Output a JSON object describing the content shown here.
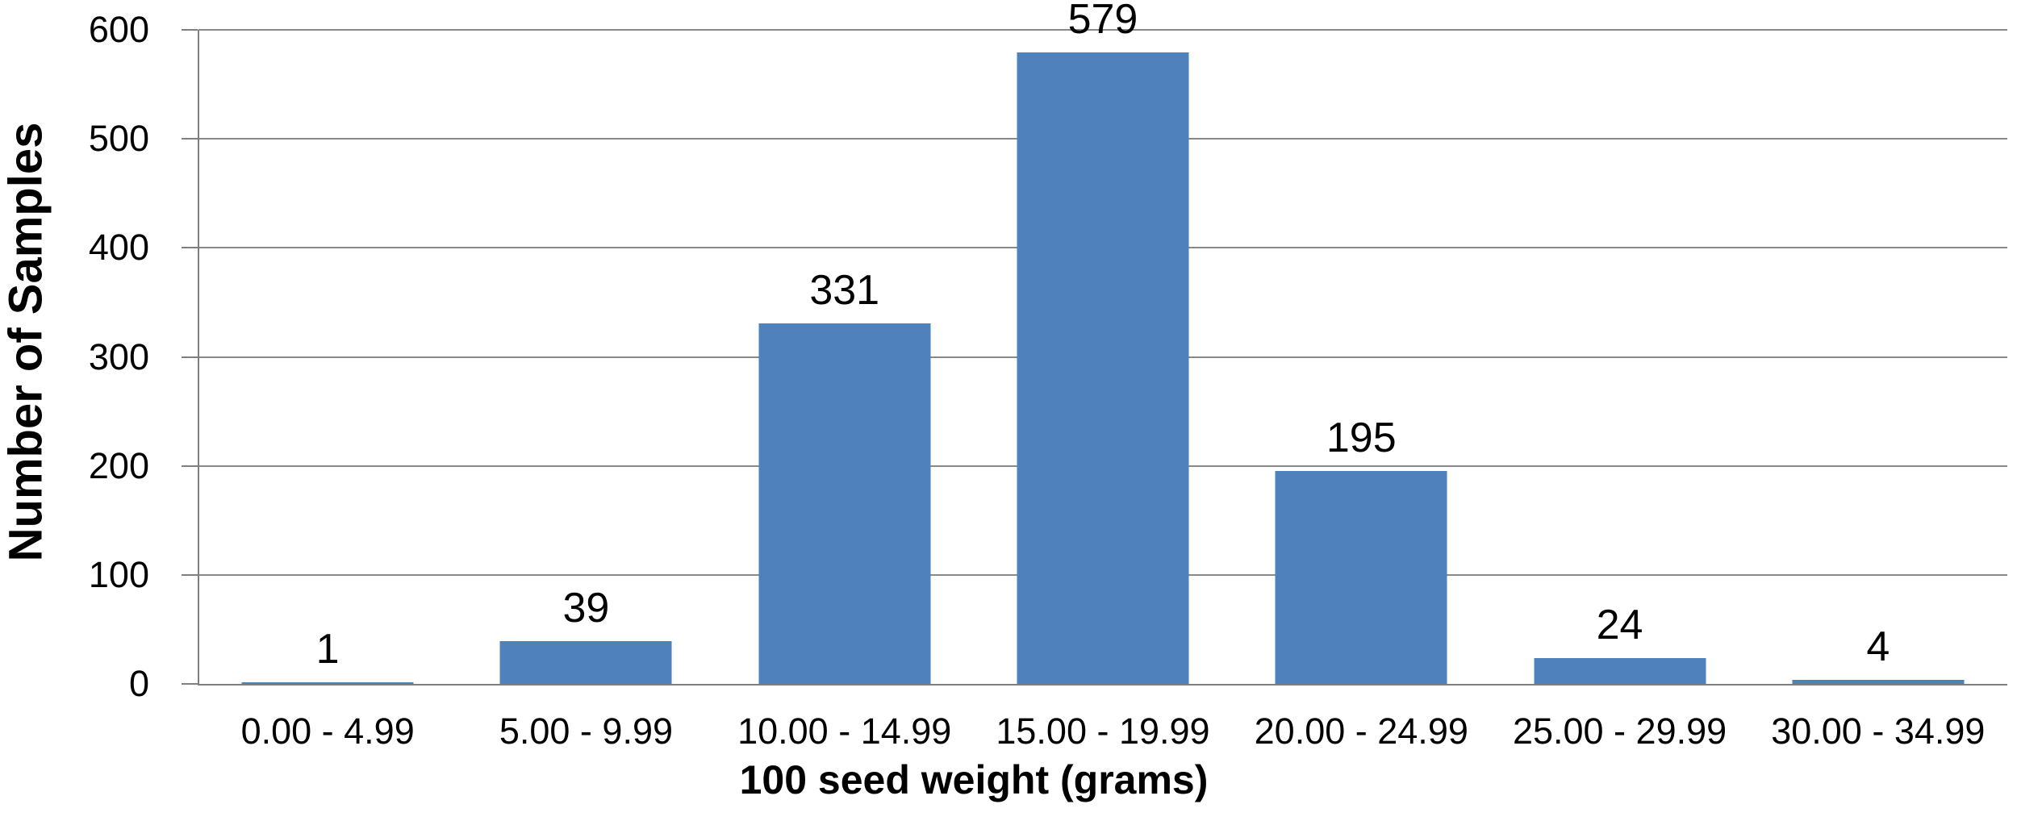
{
  "chart_data": {
    "type": "bar",
    "title": "",
    "categories": [
      "0.00 - 4.99",
      "5.00 - 9.99",
      "10.00 - 14.99",
      "15.00 - 19.99",
      "20.00 - 24.99",
      "25.00 - 29.99",
      "30.00 - 34.99"
    ],
    "values": [
      1,
      39,
      331,
      579,
      195,
      24,
      4
    ],
    "data_labels": [
      "1",
      "39",
      "331",
      "579",
      "195",
      "24",
      "4"
    ],
    "xlabel": "100 seed weight (grams)",
    "ylabel": "Number of Samples",
    "ylim": [
      0,
      600
    ],
    "yticks": [
      0,
      100,
      200,
      300,
      400,
      500,
      600
    ],
    "grid": "horizontal",
    "legend": "none",
    "colors": {
      "bar": "#4F81BD",
      "gridline": "#898989",
      "axis": "#7F7F7F",
      "text": "#000000",
      "background": "#FFFFFF"
    }
  }
}
